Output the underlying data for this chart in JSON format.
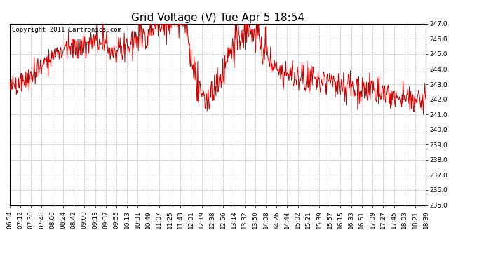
{
  "title": "Grid Voltage (V) Tue Apr 5 18:54",
  "copyright": "Copyright 2011 Cartronics.com",
  "line_color": "#cc0000",
  "background_color": "#ffffff",
  "grid_color": "#bbbbbb",
  "ylim": [
    235.0,
    247.0
  ],
  "yticks": [
    235.0,
    236.0,
    237.0,
    238.0,
    239.0,
    240.0,
    241.0,
    242.0,
    243.0,
    244.0,
    245.0,
    246.0,
    247.0
  ],
  "xtick_labels": [
    "06:54",
    "07:12",
    "07:30",
    "07:48",
    "08:06",
    "08:24",
    "08:42",
    "09:00",
    "09:18",
    "09:37",
    "09:55",
    "10:13",
    "10:31",
    "10:49",
    "11:07",
    "11:25",
    "11:43",
    "12:01",
    "12:19",
    "12:38",
    "12:56",
    "13:14",
    "13:32",
    "13:50",
    "14:08",
    "14:26",
    "14:44",
    "15:02",
    "15:21",
    "15:39",
    "15:57",
    "16:15",
    "16:33",
    "16:51",
    "17:09",
    "17:27",
    "17:45",
    "18:03",
    "18:21",
    "18:39"
  ],
  "title_fontsize": 11,
  "tick_fontsize": 6.5,
  "copyright_fontsize": 6.5,
  "line_width": 0.7,
  "figsize": [
    6.9,
    3.75
  ],
  "dpi": 100
}
